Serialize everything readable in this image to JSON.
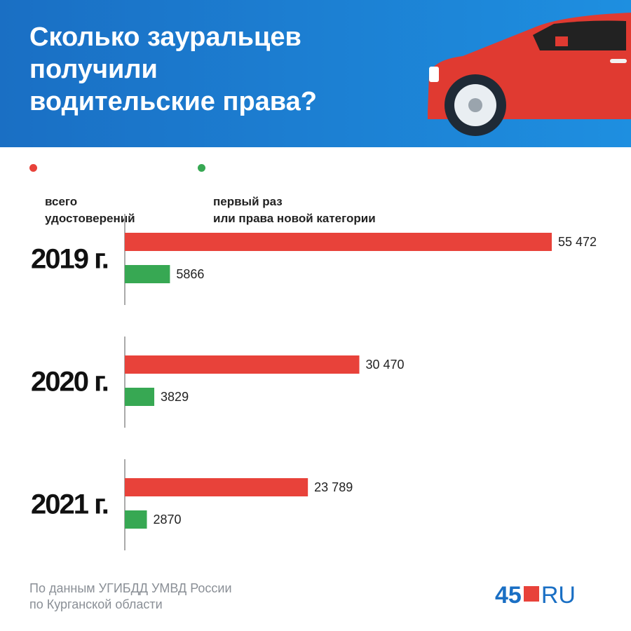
{
  "chart_data": {
    "type": "bar",
    "orientation": "horizontal",
    "title": "Сколько зауральцев\nполучили\nводительские права?",
    "categories": [
      "2019 г.",
      "2020 г.",
      "2021 г."
    ],
    "series": [
      {
        "name": "всего\nудостоверений",
        "color": "#e8423a",
        "values": [
          55472,
          30470,
          23789
        ],
        "value_labels": [
          "55 472",
          "30 470",
          "23 789"
        ]
      },
      {
        "name": "первый раз\nили права новой категории",
        "color": "#37a853",
        "values": [
          5866,
          3829,
          2870
        ]
      }
    ],
    "source": "По данным УГИБДД УМВД России\nпо Курганской области",
    "logo": [
      "45",
      "RU"
    ]
  }
}
